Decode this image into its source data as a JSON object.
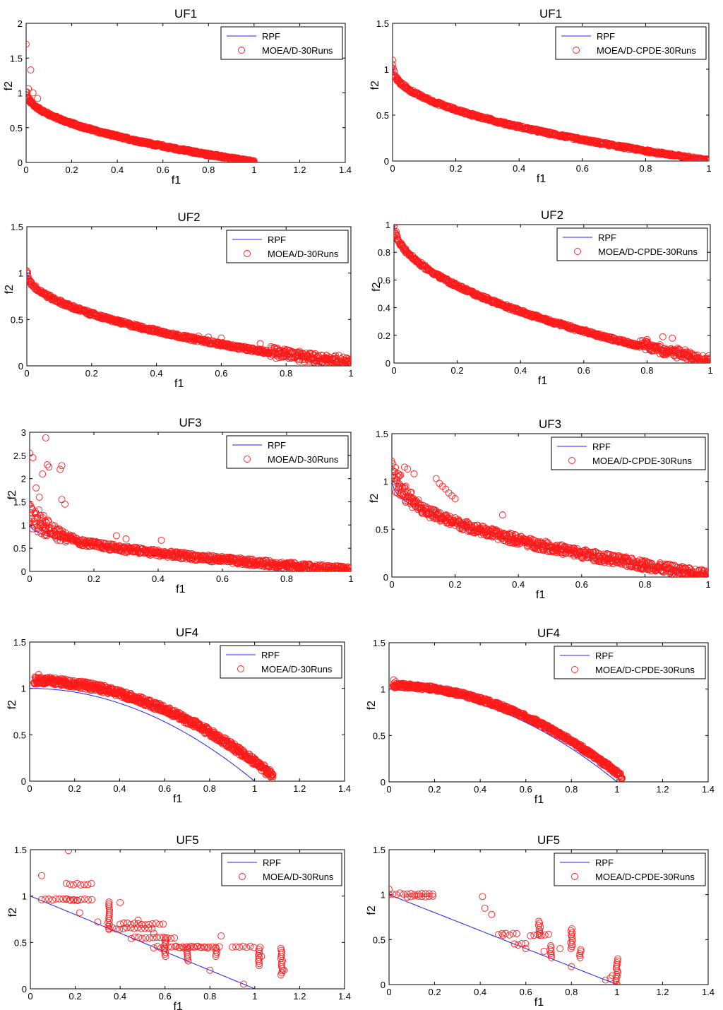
{
  "colors": {
    "rpf": "#1f1fff",
    "points": "#ff1a1a",
    "frame": "#000000",
    "background": "#ffffff"
  },
  "chart_data": [
    {
      "id": "uf1-moead",
      "type": "scatter",
      "title": "UF1",
      "xlabel": "f1",
      "ylabel": "f2",
      "xlim": [
        0,
        1.4
      ],
      "ylim": [
        0,
        2
      ],
      "xticks": [
        "0",
        "0.2",
        "0.4",
        "0.6",
        "0.8",
        "1",
        "1.2",
        "1.4"
      ],
      "yticks": [
        "0",
        "0.5",
        "1",
        "1.5",
        "2"
      ],
      "legend": [
        "RPF",
        "MOEA/D-30Runs"
      ],
      "rpf": "1-sqrt(x)",
      "series": [
        {
          "name": "MOEA/D-30Runs",
          "profile": "1-sqrt(x)",
          "xmin": 0,
          "xmax": 1,
          "spread": 0.02,
          "extra": [
            [
              0,
              1.7
            ],
            [
              0.02,
              1.33
            ],
            [
              0.03,
              1.0
            ],
            [
              0.05,
              0.92
            ],
            [
              0.01,
              1.06
            ]
          ]
        }
      ]
    },
    {
      "id": "uf1-cpde",
      "type": "scatter",
      "title": "UF1",
      "xlabel": "f1",
      "ylabel": "f2",
      "xlim": [
        0,
        1
      ],
      "ylim": [
        0,
        1.5
      ],
      "xticks": [
        "0",
        "0.2",
        "0.4",
        "0.6",
        "0.8",
        "1"
      ],
      "yticks": [
        "0",
        "0.5",
        "1",
        "1.5"
      ],
      "legend": [
        "RPF",
        "MOEA/D-CPDE-30Runs"
      ],
      "rpf": "1-sqrt(x)",
      "series": [
        {
          "name": "MOEA/D-CPDE-30Runs",
          "profile": "1-sqrt(x)",
          "xmin": 0,
          "xmax": 1,
          "spread": 0.015,
          "extra": [
            [
              0,
              1.1
            ],
            [
              0,
              1.05
            ],
            [
              0.005,
              0.98
            ]
          ]
        }
      ]
    },
    {
      "id": "uf2-moead",
      "type": "scatter",
      "title": "UF2",
      "xlabel": "f1",
      "ylabel": "f2",
      "xlim": [
        0,
        1
      ],
      "ylim": [
        0,
        1.5
      ],
      "xticks": [
        "0",
        "0.2",
        "0.4",
        "0.6",
        "0.8",
        "1"
      ],
      "yticks": [
        "0",
        "0.5",
        "1",
        "1.5"
      ],
      "legend": [
        "RPF",
        "MOEA/D-30Runs"
      ],
      "rpf": "1-sqrt(x)",
      "series": [
        {
          "name": "MOEA/D-30Runs",
          "profile": "1-sqrt(x)",
          "xmin": 0,
          "xmax": 1,
          "spread": 0.02,
          "noisyFrom": 0.75,
          "noise": 0.1,
          "extra": [
            [
              0,
              1.0
            ],
            [
              0.01,
              0.92
            ],
            [
              0.53,
              0.32
            ],
            [
              0.56,
              0.31
            ],
            [
              0.6,
              0.3
            ],
            [
              0.72,
              0.24
            ]
          ]
        }
      ]
    },
    {
      "id": "uf2-cpde",
      "type": "scatter",
      "title": "UF2",
      "xlabel": "f1",
      "ylabel": "f2",
      "xlim": [
        0,
        1
      ],
      "ylim": [
        0,
        1
      ],
      "xticks": [
        "0",
        "0.2",
        "0.4",
        "0.6",
        "0.8",
        "1"
      ],
      "yticks": [
        "0",
        "0.2",
        "0.4",
        "0.6",
        "0.8",
        "1"
      ],
      "legend": [
        "RPF",
        "MOEA/D-CPDE-30Runs"
      ],
      "rpf": "1-sqrt(x)",
      "series": [
        {
          "name": "MOEA/D-CPDE-30Runs",
          "profile": "1-sqrt(x)",
          "xmin": 0,
          "xmax": 1,
          "spread": 0.012,
          "noisyFrom": 0.78,
          "noise": 0.06,
          "extra": [
            [
              0,
              0.99
            ],
            [
              0.01,
              0.9
            ],
            [
              0.02,
              0.85
            ],
            [
              0.8,
              0.17
            ],
            [
              0.85,
              0.19
            ],
            [
              0.88,
              0.18
            ],
            [
              0.9,
              0.1
            ],
            [
              0.95,
              0.05
            ],
            [
              1,
              0.04
            ]
          ]
        }
      ]
    },
    {
      "id": "uf3-moead",
      "type": "scatter",
      "title": "UF3",
      "xlabel": "f1",
      "ylabel": "f2",
      "xlim": [
        0,
        1
      ],
      "ylim": [
        0,
        3
      ],
      "xticks": [
        "0",
        "0.2",
        "0.4",
        "0.6",
        "0.8",
        "1"
      ],
      "yticks": [
        "0",
        "0.5",
        "1",
        "1.5",
        "2",
        "2.5",
        "3"
      ],
      "legend": [
        "RPF",
        "MOEA/D-30Runs"
      ],
      "rpf": "1-sqrt(x)",
      "series": [
        {
          "name": "MOEA/D-30Runs",
          "profile": "1-sqrt(x)",
          "xmin": 0,
          "xmax": 1,
          "spread": 0.07,
          "cloudTo": 0.15,
          "cloud": 0.5,
          "extra": [
            [
              0,
              2.55
            ],
            [
              0.01,
              2.45
            ],
            [
              0.05,
              2.88
            ],
            [
              0.06,
              2.25
            ],
            [
              0.1,
              2.28
            ],
            [
              0.095,
              2.2
            ],
            [
              0.02,
              1.8
            ],
            [
              0.03,
              1.6
            ],
            [
              0.1,
              1.55
            ],
            [
              0.11,
              1.45
            ],
            [
              0.04,
              2.1
            ],
            [
              0.055,
              2.3
            ],
            [
              0.27,
              0.77
            ],
            [
              0.41,
              0.67
            ],
            [
              0.3,
              0.7
            ],
            [
              0.97,
              0.1
            ]
          ]
        }
      ]
    },
    {
      "id": "uf3-cpde",
      "type": "scatter",
      "title": "UF3",
      "xlabel": "f1",
      "ylabel": "f2",
      "xlim": [
        0,
        1
      ],
      "ylim": [
        0,
        1.5
      ],
      "xticks": [
        "0",
        "0.2",
        "0.4",
        "0.6",
        "0.8",
        "1"
      ],
      "yticks": [
        "0",
        "0.5",
        "1",
        "1.5"
      ],
      "legend": [
        "RPF",
        "MOEA/D-CPDE-30Runs"
      ],
      "rpf": "1-sqrt(x)",
      "series": [
        {
          "name": "MOEA/D-CPDE-30Runs",
          "profile": "1-sqrt(x)",
          "xmin": 0,
          "xmax": 1,
          "spread": 0.05,
          "cloudTo": 0.1,
          "cloud": 0.25,
          "extra": [
            [
              0.01,
              1.1
            ],
            [
              0.02,
              1.08
            ],
            [
              0.04,
              1.15
            ],
            [
              0.05,
              1.13
            ],
            [
              0.07,
              1.08
            ],
            [
              0.14,
              1.03
            ],
            [
              0.15,
              0.98
            ],
            [
              0.16,
              0.95
            ],
            [
              0.17,
              0.92
            ],
            [
              0.18,
              0.88
            ],
            [
              0.19,
              0.85
            ],
            [
              0.2,
              0.82
            ],
            [
              0.35,
              0.65
            ],
            [
              0.97,
              0.07
            ],
            [
              1,
              0.05
            ]
          ]
        }
      ]
    },
    {
      "id": "uf4-moead",
      "type": "scatter",
      "title": "UF4",
      "xlabel": "f1",
      "ylabel": "f2",
      "xlim": [
        0,
        1.4
      ],
      "ylim": [
        0,
        1.5
      ],
      "xticks": [
        "0",
        "0.2",
        "0.4",
        "0.6",
        "0.8",
        "1",
        "1.2",
        "1.4"
      ],
      "yticks": [
        "0",
        "0.5",
        "1",
        "1.5"
      ],
      "legend": [
        "RPF",
        "MOEA/D-30Runs"
      ],
      "rpf": "1-x^2",
      "series": [
        {
          "name": "MOEA/D-30Runs",
          "profile": "1.07-(x/1.07)^2",
          "xmin": 0.02,
          "xmax": 1.08,
          "spread": 0.04,
          "extra": [
            [
              0.04,
              1.15
            ],
            [
              0.03,
              1.1
            ],
            [
              0.05,
              1.12
            ],
            [
              1.05,
              0.07
            ],
            [
              1.08,
              0.07
            ]
          ]
        }
      ]
    },
    {
      "id": "uf4-cpde",
      "type": "scatter",
      "title": "UF4",
      "xlabel": "f1",
      "ylabel": "f2",
      "xlim": [
        0,
        1.4
      ],
      "ylim": [
        0,
        1.5
      ],
      "xticks": [
        "0",
        "0.2",
        "0.4",
        "0.6",
        "0.8",
        "1",
        "1.2",
        "1.4"
      ],
      "yticks": [
        "0",
        "0.5",
        "1",
        "1.5"
      ],
      "legend": [
        "RPF",
        "MOEA/D-CPDE-30Runs"
      ],
      "rpf": "1-x^2",
      "series": [
        {
          "name": "MOEA/D-CPDE-30Runs",
          "profile": "1.03-(x/1.03)^2",
          "xmin": 0.02,
          "xmax": 1.02,
          "spread": 0.025,
          "extra": [
            [
              0.02,
              1.1
            ],
            [
              0.03,
              1.08
            ],
            [
              1.02,
              0.03
            ],
            [
              1.0,
              0.1
            ]
          ]
        }
      ]
    },
    {
      "id": "uf5-moead",
      "type": "scatter",
      "title": "UF5",
      "xlabel": "f1",
      "ylabel": "f2",
      "xlim": [
        0,
        1.4
      ],
      "ylim": [
        0,
        1.5
      ],
      "xticks": [
        "0",
        "0.2",
        "0.4",
        "0.6",
        "0.8",
        "1",
        "1.2",
        "1.4"
      ],
      "yticks": [
        "0",
        "0.5",
        "1",
        "1.5"
      ],
      "legend": [
        "RPF",
        "MOEA/D-30Runs"
      ],
      "rpf": "1-x",
      "series": [
        {
          "name": "MOEA/D-30Runs",
          "hlines": [
            [
              0.05,
              0.28,
              0.96
            ],
            [
              0.16,
              0.28,
              1.13
            ],
            [
              0.16,
              0.22,
              0.96
            ],
            [
              0.35,
              0.55,
              0.65
            ],
            [
              0.4,
              0.6,
              0.7
            ],
            [
              0.45,
              0.65,
              0.55
            ],
            [
              0.55,
              0.8,
              0.45
            ],
            [
              0.65,
              0.85,
              0.45
            ],
            [
              0.9,
              1.0,
              0.45
            ]
          ],
          "vlines": [
            [
              0.35,
              0.65,
              0.95
            ],
            [
              0.6,
              0.35,
              0.55
            ],
            [
              0.7,
              0.3,
              0.45
            ],
            [
              1.02,
              0.25,
              0.45
            ],
            [
              1.12,
              0.15,
              0.45
            ],
            [
              0.83,
              0.35,
              0.45
            ]
          ],
          "extra": [
            [
              0.05,
              1.22
            ],
            [
              0.17,
              1.49
            ],
            [
              0.22,
              0.82
            ],
            [
              0.3,
              0.72
            ],
            [
              0.4,
              0.93
            ],
            [
              0.48,
              0.74
            ],
            [
              0.55,
              0.6
            ],
            [
              0.85,
              0.57
            ],
            [
              0.8,
              0.2
            ],
            [
              0.95,
              0.05
            ],
            [
              1.03,
              0.35
            ],
            [
              1.13,
              0.2
            ]
          ]
        }
      ]
    },
    {
      "id": "uf5-cpde",
      "type": "scatter",
      "title": "UF5",
      "xlabel": "f1",
      "ylabel": "f2",
      "xlim": [
        0,
        1.4
      ],
      "ylim": [
        0,
        1.5
      ],
      "xticks": [
        "0",
        "0.2",
        "0.4",
        "0.6",
        "0.8",
        "1",
        "1.2",
        "1.4"
      ],
      "yticks": [
        "0",
        "0.5",
        "1",
        "1.5"
      ],
      "legend": [
        "RPF",
        "MOEA/D-CPDE-30Runs"
      ],
      "rpf": "1-x",
      "series": [
        {
          "name": "MOEA/D-CPDE-30Runs",
          "hlines": [
            [
              0.0,
              0.2,
              1.01
            ],
            [
              0.08,
              0.2,
              0.98
            ],
            [
              0.48,
              0.56,
              0.56
            ],
            [
              0.55,
              0.6,
              0.45
            ],
            [
              0.62,
              0.7,
              0.55
            ]
          ],
          "vlines": [
            [
              0.66,
              0.55,
              0.72
            ],
            [
              0.71,
              0.3,
              0.45
            ],
            [
              0.8,
              0.4,
              0.62
            ],
            [
              1.0,
              0.0,
              0.3
            ],
            [
              0.84,
              0.3,
              0.4
            ]
          ],
          "extra": [
            [
              0.0,
              1.06
            ],
            [
              0.41,
              0.98
            ],
            [
              0.42,
              0.85
            ],
            [
              0.45,
              0.78
            ],
            [
              0.5,
              0.55
            ],
            [
              0.6,
              0.4
            ],
            [
              0.68,
              0.37
            ],
            [
              0.75,
              0.4
            ],
            [
              0.8,
              0.2
            ],
            [
              0.95,
              0.05
            ],
            [
              0.97,
              0.07
            ],
            [
              0.98,
              0.1
            ]
          ]
        }
      ]
    }
  ]
}
